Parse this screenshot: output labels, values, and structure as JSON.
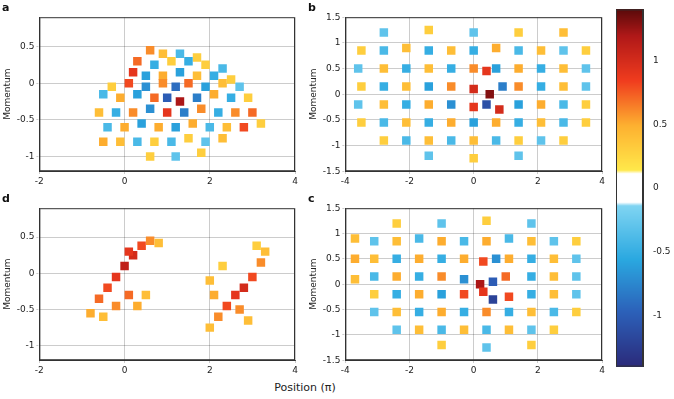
{
  "chart_data": [
    {
      "type": "heatmap",
      "title": "a",
      "ylabel": "Momentum",
      "xlim": [
        -2,
        4
      ],
      "xticks": [
        -2,
        0,
        2,
        4
      ],
      "ylim": [
        -1.2,
        0.9
      ],
      "yticks": [
        -1,
        -0.5,
        0,
        0.5
      ],
      "grid": true,
      "cells": [
        [
          0.6,
          0.45,
          0.6
        ],
        [
          0.9,
          0.4,
          0.4
        ],
        [
          1.3,
          0.4,
          -0.4
        ],
        [
          1.7,
          0.35,
          0.3
        ],
        [
          0.3,
          0.3,
          0.7
        ],
        [
          0.7,
          0.25,
          -0.5
        ],
        [
          1.1,
          0.3,
          0.3
        ],
        [
          1.5,
          0.3,
          -0.5
        ],
        [
          1.9,
          0.25,
          0.3
        ],
        [
          2.3,
          0.2,
          -0.4
        ],
        [
          0.2,
          0.15,
          0.9
        ],
        [
          0.5,
          0.1,
          -0.6
        ],
        [
          0.9,
          0.1,
          0.5
        ],
        [
          1.3,
          0.15,
          -0.6
        ],
        [
          1.7,
          0.1,
          0.4
        ],
        [
          2.1,
          0.1,
          -0.5
        ],
        [
          2.5,
          0.05,
          0.3
        ],
        [
          -0.3,
          -0.05,
          0.3
        ],
        [
          0.1,
          0,
          0.8
        ],
        [
          0.5,
          -0.05,
          -0.7
        ],
        [
          0.9,
          0,
          0.6
        ],
        [
          1.2,
          -0.05,
          -0.9
        ],
        [
          1.5,
          0,
          0.7
        ],
        [
          1.9,
          -0.05,
          -0.6
        ],
        [
          2.3,
          0,
          0.4
        ],
        [
          2.7,
          -0.05,
          -0.3
        ],
        [
          -0.5,
          -0.15,
          -0.4
        ],
        [
          -0.1,
          -0.2,
          0.5
        ],
        [
          0.3,
          -0.15,
          -0.6
        ],
        [
          0.7,
          -0.2,
          0.7
        ],
        [
          1.0,
          -0.2,
          -1.0
        ],
        [
          1.3,
          -0.25,
          1.2
        ],
        [
          1.7,
          -0.2,
          -0.8
        ],
        [
          2.1,
          -0.15,
          0.5
        ],
        [
          2.5,
          -0.2,
          -0.5
        ],
        [
          2.9,
          -0.2,
          0.3
        ],
        [
          -0.6,
          -0.4,
          0.4
        ],
        [
          -0.2,
          -0.4,
          -0.5
        ],
        [
          0.2,
          -0.4,
          0.6
        ],
        [
          0.6,
          -0.35,
          -0.7
        ],
        [
          1.0,
          -0.4,
          0.9
        ],
        [
          1.4,
          -0.4,
          -0.8
        ],
        [
          1.8,
          -0.35,
          0.6
        ],
        [
          2.2,
          -0.4,
          -0.5
        ],
        [
          2.6,
          -0.4,
          0.6
        ],
        [
          3.0,
          -0.4,
          0.7
        ],
        [
          -0.4,
          -0.6,
          -0.4
        ],
        [
          0.0,
          -0.6,
          0.5
        ],
        [
          0.4,
          -0.55,
          -0.6
        ],
        [
          0.8,
          -0.6,
          0.5
        ],
        [
          1.2,
          -0.6,
          -0.6
        ],
        [
          1.6,
          -0.55,
          0.5
        ],
        [
          2.0,
          -0.6,
          -0.4
        ],
        [
          2.4,
          -0.6,
          0.4
        ],
        [
          2.8,
          -0.6,
          0.8
        ],
        [
          3.2,
          -0.55,
          0.3
        ],
        [
          -0.5,
          -0.8,
          0.5
        ],
        [
          -0.1,
          -0.8,
          0.4
        ],
        [
          0.3,
          -0.8,
          -0.4
        ],
        [
          0.7,
          -0.8,
          0.3
        ],
        [
          1.1,
          -0.8,
          -0.4
        ],
        [
          1.5,
          -0.75,
          0.3
        ],
        [
          1.9,
          -0.8,
          -0.3
        ],
        [
          2.3,
          -0.75,
          0.4
        ],
        [
          0.6,
          -1.0,
          0.3
        ],
        [
          1.2,
          -1.0,
          -0.3
        ],
        [
          1.8,
          -0.95,
          0.3
        ]
      ]
    },
    {
      "type": "heatmap",
      "title": "b",
      "ylabel": "Momentum",
      "xlim": [
        -4,
        4
      ],
      "xticks": [
        -4,
        -2,
        0,
        2,
        4
      ],
      "ylim": [
        -1.5,
        1.5
      ],
      "yticks": [
        -1.5,
        -1,
        -0.5,
        0,
        0.5,
        1,
        1.5
      ],
      "grid": true,
      "cells": [
        [
          -2.8,
          1.2,
          -0.3
        ],
        [
          -1.4,
          1.25,
          0.3
        ],
        [
          0,
          1.2,
          -0.3
        ],
        [
          1.4,
          1.2,
          0.3
        ],
        [
          2.8,
          1.2,
          0.4
        ],
        [
          -3.5,
          0.85,
          0.3
        ],
        [
          -2.8,
          0.85,
          -0.4
        ],
        [
          -2.1,
          0.9,
          0.4
        ],
        [
          -1.4,
          0.85,
          -0.5
        ],
        [
          -0.7,
          0.85,
          0.4
        ],
        [
          0,
          0.85,
          -0.5
        ],
        [
          0.7,
          0.9,
          0.5
        ],
        [
          1.4,
          0.85,
          -0.4
        ],
        [
          2.1,
          0.85,
          0.4
        ],
        [
          2.8,
          0.85,
          -0.3
        ],
        [
          3.5,
          0.85,
          0.3
        ],
        [
          -3.6,
          0.5,
          -0.3
        ],
        [
          -2.8,
          0.5,
          0.4
        ],
        [
          -2.1,
          0.5,
          -0.5
        ],
        [
          -1.4,
          0.5,
          0.4
        ],
        [
          -0.7,
          0.5,
          -0.5
        ],
        [
          0,
          0.5,
          0.6
        ],
        [
          0.4,
          0.45,
          0.9
        ],
        [
          0.7,
          0.5,
          -0.6
        ],
        [
          1.4,
          0.5,
          0.5
        ],
        [
          2.1,
          0.5,
          -0.5
        ],
        [
          2.8,
          0.5,
          0.4
        ],
        [
          3.5,
          0.5,
          -0.3
        ],
        [
          -3.5,
          0.15,
          0.3
        ],
        [
          -2.8,
          0.15,
          -0.5
        ],
        [
          -2.1,
          0.15,
          0.4
        ],
        [
          -1.4,
          0.15,
          -0.6
        ],
        [
          -0.7,
          0.15,
          0.6
        ],
        [
          0,
          0.1,
          1.0
        ],
        [
          0.5,
          0.0,
          1.3
        ],
        [
          0.9,
          0.15,
          -0.8
        ],
        [
          1.4,
          0.15,
          0.6
        ],
        [
          2.1,
          0.15,
          -0.5
        ],
        [
          2.8,
          0.15,
          0.4
        ],
        [
          3.5,
          0.15,
          -0.3
        ],
        [
          -3.6,
          -0.2,
          -0.3
        ],
        [
          -2.8,
          -0.2,
          0.4
        ],
        [
          -2.1,
          -0.2,
          -0.5
        ],
        [
          -1.4,
          -0.2,
          0.5
        ],
        [
          -0.7,
          -0.2,
          -0.7
        ],
        [
          0,
          -0.25,
          0.9
        ],
        [
          0.4,
          -0.2,
          -1.1
        ],
        [
          0.8,
          -0.3,
          1.0
        ],
        [
          1.4,
          -0.2,
          -0.6
        ],
        [
          2.1,
          -0.2,
          0.5
        ],
        [
          2.8,
          -0.2,
          -0.4
        ],
        [
          3.5,
          -0.2,
          0.3
        ],
        [
          -3.5,
          -0.55,
          0.3
        ],
        [
          -2.8,
          -0.55,
          -0.4
        ],
        [
          -2.1,
          -0.55,
          0.4
        ],
        [
          -1.4,
          -0.55,
          -0.5
        ],
        [
          -0.7,
          -0.55,
          0.5
        ],
        [
          0,
          -0.55,
          -0.6
        ],
        [
          0.7,
          -0.55,
          0.5
        ],
        [
          1.4,
          -0.55,
          -0.5
        ],
        [
          2.1,
          -0.55,
          0.4
        ],
        [
          2.8,
          -0.55,
          -0.4
        ],
        [
          3.5,
          -0.55,
          0.3
        ],
        [
          -2.8,
          -0.9,
          0.3
        ],
        [
          -2.1,
          -0.9,
          -0.4
        ],
        [
          -1.4,
          -0.9,
          0.4
        ],
        [
          -0.7,
          -0.9,
          -0.4
        ],
        [
          0,
          -0.9,
          0.4
        ],
        [
          0.7,
          -0.9,
          -0.4
        ],
        [
          1.4,
          -0.9,
          0.3
        ],
        [
          2.1,
          -0.9,
          -0.3
        ],
        [
          2.8,
          -0.9,
          0.3
        ],
        [
          -1.4,
          -1.2,
          -0.3
        ],
        [
          0,
          -1.25,
          0.3
        ],
        [
          1.4,
          -1.2,
          -0.3
        ]
      ]
    },
    {
      "type": "heatmap",
      "title": "d",
      "ylabel": "Momentum",
      "xlim": [
        -2,
        4
      ],
      "xticks": [
        -2,
        0,
        2,
        4
      ],
      "ylim": [
        -1.2,
        0.9
      ],
      "yticks": [
        -1,
        -0.5,
        0,
        0.5
      ],
      "grid": true,
      "cells": [
        [
          -0.8,
          -0.55,
          0.5
        ],
        [
          -0.6,
          -0.35,
          0.7
        ],
        [
          -0.4,
          -0.2,
          0.8
        ],
        [
          -0.2,
          -0.05,
          0.9
        ],
        [
          0,
          0.1,
          1.1
        ],
        [
          0.2,
          0.25,
          1.0
        ],
        [
          0.4,
          0.38,
          0.8
        ],
        [
          0.6,
          0.45,
          0.6
        ],
        [
          0.8,
          0.42,
          0.4
        ],
        [
          -0.5,
          -0.6,
          0.4
        ],
        [
          -0.2,
          -0.45,
          0.6
        ],
        [
          0.1,
          -0.3,
          0.7
        ],
        [
          0.3,
          -0.45,
          0.5
        ],
        [
          0.5,
          -0.3,
          0.4
        ],
        [
          0.1,
          0.3,
          0.9
        ],
        [
          2.0,
          -0.75,
          0.4
        ],
        [
          2.2,
          -0.6,
          0.6
        ],
        [
          2.4,
          -0.45,
          0.8
        ],
        [
          2.6,
          -0.3,
          0.9
        ],
        [
          2.8,
          -0.2,
          1.0
        ],
        [
          3.0,
          -0.05,
          0.8
        ],
        [
          3.2,
          0.15,
          0.6
        ],
        [
          3.3,
          0.3,
          0.4
        ],
        [
          3.1,
          0.38,
          0.3
        ],
        [
          2.1,
          -0.3,
          0.5
        ],
        [
          2.0,
          -0.1,
          0.4
        ],
        [
          2.3,
          0.1,
          0.3
        ],
        [
          2.7,
          -0.5,
          0.6
        ],
        [
          2.9,
          -0.65,
          0.4
        ]
      ]
    },
    {
      "type": "heatmap",
      "title": "c",
      "ylabel": "Momentum",
      "xlim": [
        -4,
        4
      ],
      "xticks": [
        -4,
        -2,
        0,
        2,
        4
      ],
      "ylim": [
        -1.5,
        1.5
      ],
      "yticks": [
        -1.5,
        -1,
        -0.5,
        0,
        0.5,
        1,
        1.5
      ],
      "grid": true,
      "cells": [
        [
          -3.7,
          0.9,
          0.4
        ],
        [
          -3.7,
          0.5,
          0.5
        ],
        [
          -3.7,
          0.1,
          0.4
        ],
        [
          -2.4,
          1.2,
          0.3
        ],
        [
          -1.0,
          1.2,
          -0.3
        ],
        [
          0.4,
          1.25,
          0.3
        ],
        [
          1.8,
          1.2,
          -0.3
        ],
        [
          -3.1,
          0.85,
          -0.3
        ],
        [
          -2.4,
          0.85,
          0.4
        ],
        [
          -1.7,
          0.9,
          -0.4
        ],
        [
          -1.0,
          0.85,
          0.5
        ],
        [
          -0.3,
          0.85,
          -0.4
        ],
        [
          0.4,
          0.85,
          0.5
        ],
        [
          1.1,
          0.9,
          -0.4
        ],
        [
          1.8,
          0.85,
          0.4
        ],
        [
          2.5,
          0.85,
          -0.3
        ],
        [
          3.2,
          0.85,
          0.3
        ],
        [
          -3.1,
          0.5,
          0.4
        ],
        [
          -2.4,
          0.5,
          -0.5
        ],
        [
          -1.7,
          0.5,
          0.5
        ],
        [
          -1.0,
          0.5,
          -0.5
        ],
        [
          -0.3,
          0.5,
          0.5
        ],
        [
          0.3,
          0.45,
          0.8
        ],
        [
          0.7,
          0.5,
          -0.7
        ],
        [
          1.1,
          0.5,
          0.5
        ],
        [
          1.8,
          0.5,
          -0.5
        ],
        [
          2.5,
          0.5,
          0.4
        ],
        [
          3.2,
          0.5,
          -0.3
        ],
        [
          -3.1,
          0.15,
          -0.4
        ],
        [
          -2.4,
          0.15,
          0.5
        ],
        [
          -1.7,
          0.15,
          -0.5
        ],
        [
          -1.0,
          0.15,
          0.6
        ],
        [
          -0.3,
          0.1,
          -0.7
        ],
        [
          0.2,
          0.0,
          1.2
        ],
        [
          0.6,
          0.05,
          -1.0
        ],
        [
          1.0,
          0.15,
          0.7
        ],
        [
          1.8,
          0.15,
          -0.5
        ],
        [
          2.5,
          0.15,
          0.4
        ],
        [
          3.2,
          0.15,
          -0.3
        ],
        [
          -3.1,
          -0.2,
          0.3
        ],
        [
          -2.4,
          -0.2,
          -0.5
        ],
        [
          -1.7,
          -0.2,
          0.5
        ],
        [
          -1.0,
          -0.2,
          -0.6
        ],
        [
          -0.3,
          -0.2,
          0.8
        ],
        [
          0.3,
          -0.15,
          0.9
        ],
        [
          0.6,
          -0.3,
          -1.2
        ],
        [
          1.1,
          -0.25,
          0.8
        ],
        [
          1.8,
          -0.2,
          -0.5
        ],
        [
          2.5,
          -0.2,
          0.4
        ],
        [
          3.2,
          -0.2,
          -0.3
        ],
        [
          -3.1,
          -0.55,
          -0.3
        ],
        [
          -2.4,
          -0.55,
          0.4
        ],
        [
          -1.7,
          -0.55,
          -0.5
        ],
        [
          -1.0,
          -0.55,
          0.5
        ],
        [
          -0.3,
          -0.55,
          -0.5
        ],
        [
          0.4,
          -0.55,
          0.6
        ],
        [
          1.1,
          -0.55,
          -0.5
        ],
        [
          1.8,
          -0.55,
          0.4
        ],
        [
          2.5,
          -0.55,
          -0.4
        ],
        [
          3.2,
          -0.55,
          0.3
        ],
        [
          -2.4,
          -0.9,
          -0.3
        ],
        [
          -1.7,
          -0.9,
          0.4
        ],
        [
          -1.0,
          -0.9,
          -0.4
        ],
        [
          -0.3,
          -0.9,
          0.4
        ],
        [
          0.4,
          -0.9,
          -0.4
        ],
        [
          1.1,
          -0.9,
          0.4
        ],
        [
          1.8,
          -0.9,
          -0.3
        ],
        [
          2.5,
          -0.9,
          0.3
        ],
        [
          -1.0,
          -1.2,
          0.3
        ],
        [
          0.4,
          -1.25,
          -0.3
        ],
        [
          1.8,
          -1.2,
          0.3
        ]
      ]
    }
  ],
  "xlabel": "Position (π)",
  "colorbar": {
    "range": [
      -1.4,
      1.4
    ],
    "ticks": [
      -1,
      -0.5,
      0,
      0.5,
      1
    ]
  }
}
